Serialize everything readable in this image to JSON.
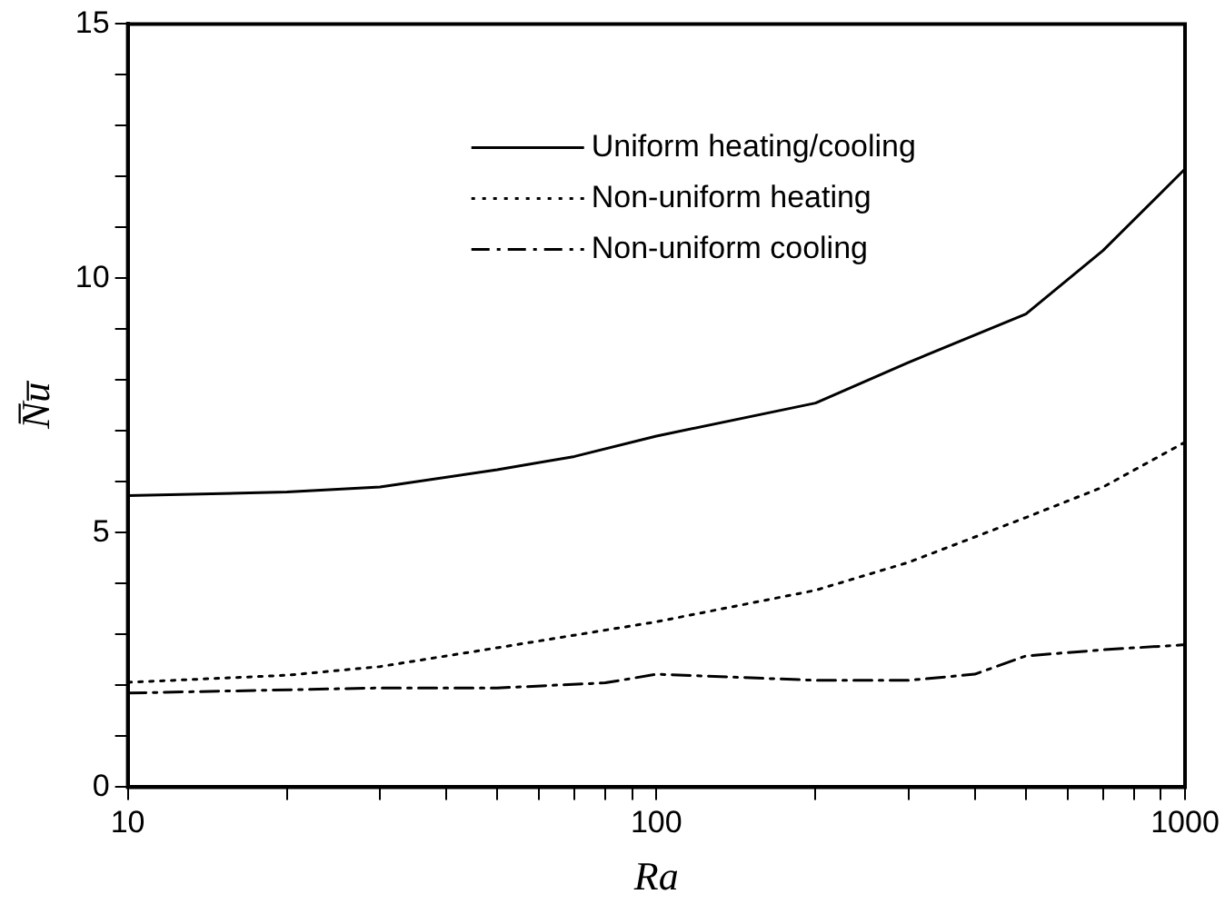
{
  "chart_data": {
    "type": "line",
    "xlabel": "Ra",
    "ylabel": "N̅u̅",
    "log": "x",
    "xlim": [
      10,
      1000
    ],
    "ylim": [
      0,
      15
    ],
    "xticks": [
      10,
      {
        "value": 20,
        "label": null
      },
      {
        "value": 30,
        "label": null
      },
      {
        "value": 40,
        "label": null
      },
      {
        "value": 50,
        "label": null
      },
      {
        "value": 60,
        "label": null
      },
      {
        "value": 70,
        "label": null
      },
      {
        "value": 80,
        "label": null
      },
      {
        "value": 90,
        "label": null
      },
      100,
      {
        "value": 200,
        "label": null
      },
      {
        "value": 300,
        "label": null
      },
      {
        "value": 400,
        "label": null
      },
      {
        "value": 500,
        "label": null
      },
      {
        "value": 600,
        "label": null
      },
      {
        "value": 700,
        "label": null
      },
      {
        "value": 800,
        "label": null
      },
      {
        "value": 900,
        "label": null
      },
      1000
    ],
    "yticks": [
      0,
      {
        "value": 1,
        "label": null
      },
      {
        "value": 2,
        "label": null
      },
      {
        "value": 3,
        "label": null
      },
      {
        "value": 4,
        "label": null
      },
      5,
      {
        "value": 6,
        "label": null
      },
      {
        "value": 7,
        "label": null
      },
      {
        "value": 8,
        "label": null
      },
      {
        "value": 9,
        "label": null
      },
      10,
      {
        "value": 11,
        "label": null
      },
      {
        "value": 12,
        "label": null
      },
      {
        "value": 13,
        "label": null
      },
      {
        "value": 14,
        "label": null
      },
      15
    ],
    "grid": false,
    "legend": "top",
    "marker": "none",
    "series": [
      {
        "name": "Uniform heating/cooling",
        "color": "#000000",
        "line_style": "solid",
        "x": [
          10,
          20,
          30,
          50,
          70,
          100,
          200,
          300,
          500,
          700,
          1000
        ],
        "values": [
          5.73,
          5.8,
          5.9,
          6.24,
          6.5,
          6.9,
          7.55,
          8.35,
          9.3,
          10.55,
          12.15
        ]
      },
      {
        "name": "Non-uniform heating",
        "color": "#000000",
        "line_style": "dotted",
        "x": [
          10,
          20,
          30,
          50,
          100,
          200,
          300,
          500,
          700,
          1000
        ],
        "values": [
          2.06,
          2.2,
          2.37,
          2.74,
          3.25,
          3.87,
          4.42,
          5.3,
          5.9,
          6.78
        ]
      },
      {
        "name": "Non-uniform cooling",
        "color": "#000000",
        "line_style": "dashed",
        "x": [
          10,
          30,
          50,
          80,
          100,
          200,
          300,
          400,
          500,
          700,
          1000
        ],
        "values": [
          1.85,
          1.95,
          1.95,
          2.05,
          2.22,
          2.1,
          2.1,
          2.22,
          2.58,
          2.7,
          2.8
        ]
      }
    ]
  }
}
